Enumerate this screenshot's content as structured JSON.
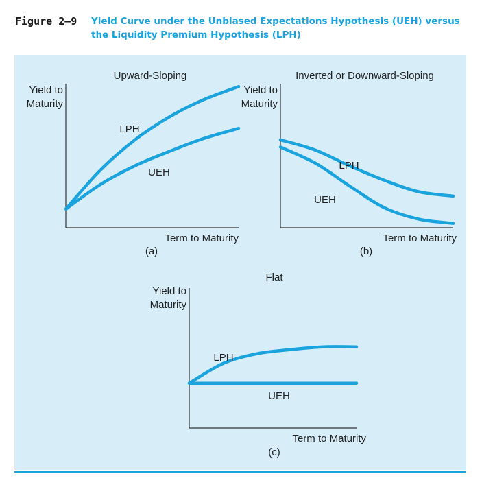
{
  "figure": {
    "number": "Figure 2–9",
    "title": "Yield Curve under the Unbiased Expectations Hypothesis (UEH) versus the Liquidity Premium Hypothesis (LPH)"
  },
  "colors": {
    "curve": "#1aa3dc",
    "panel": "#d7eef9",
    "title": "#1aa3dc",
    "axis": "#333333"
  },
  "chart_data": [
    {
      "type": "line",
      "panel": "(a)",
      "title": "Upward-Sloping",
      "ylabel_line1": "Yield to",
      "ylabel_line2": "Maturity",
      "xlabel": "Term to Maturity",
      "xlim": [
        0,
        10
      ],
      "ylim": [
        0,
        10
      ],
      "series": [
        {
          "name": "LPH",
          "x": [
            0,
            2,
            4,
            6,
            8,
            10
          ],
          "values": [
            1.3,
            4.0,
            6.1,
            7.7,
            8.9,
            9.8
          ]
        },
        {
          "name": "UEH",
          "x": [
            0,
            2,
            4,
            6,
            8,
            10
          ],
          "values": [
            1.3,
            3.0,
            4.3,
            5.3,
            6.2,
            6.9
          ]
        }
      ]
    },
    {
      "type": "line",
      "panel": "(b)",
      "title": "Inverted or Downward-Sloping",
      "ylabel_line1": "Yield to",
      "ylabel_line2": "Maturity",
      "xlabel": "Term to Maturity",
      "xlim": [
        0,
        10
      ],
      "ylim": [
        0,
        10
      ],
      "series": [
        {
          "name": "LPH",
          "x": [
            0,
            2,
            4,
            6,
            8,
            10
          ],
          "values": [
            6.1,
            5.4,
            4.3,
            3.3,
            2.5,
            2.2
          ]
        },
        {
          "name": "UEH",
          "x": [
            0,
            2,
            4,
            6,
            8,
            10
          ],
          "values": [
            5.6,
            4.5,
            2.9,
            1.4,
            0.6,
            0.3
          ]
        }
      ]
    },
    {
      "type": "line",
      "panel": "(c)",
      "title": "Flat",
      "ylabel_line1": "Yield to",
      "ylabel_line2": "Maturity",
      "xlabel": "Term to Maturity",
      "xlim": [
        0,
        10
      ],
      "ylim": [
        0,
        10
      ],
      "series": [
        {
          "name": "LPH",
          "x": [
            0,
            2,
            4,
            6,
            8,
            10
          ],
          "values": [
            3.2,
            4.6,
            5.3,
            5.6,
            5.8,
            5.8
          ]
        },
        {
          "name": "UEH",
          "x": [
            0,
            2,
            4,
            6,
            8,
            10
          ],
          "values": [
            3.2,
            3.2,
            3.2,
            3.2,
            3.2,
            3.2
          ]
        }
      ]
    }
  ]
}
